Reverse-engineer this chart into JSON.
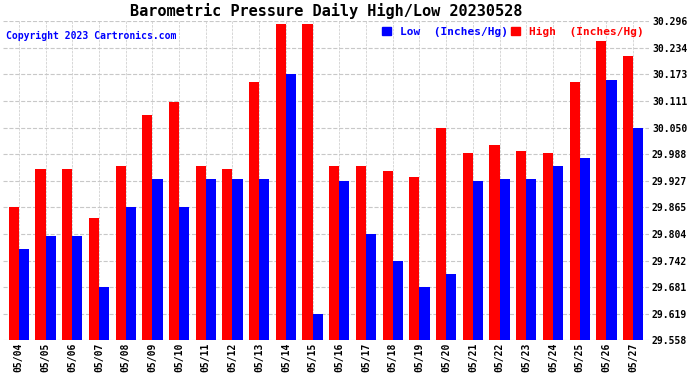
{
  "title": "Barometric Pressure Daily High/Low 20230528",
  "copyright": "Copyright 2023 Cartronics.com",
  "ylabel_low": "Low  (Inches/Hg)",
  "ylabel_high": "High  (Inches/Hg)",
  "dates": [
    "05/04",
    "05/05",
    "05/06",
    "05/07",
    "05/08",
    "05/09",
    "05/10",
    "05/11",
    "05/12",
    "05/13",
    "05/14",
    "05/15",
    "05/16",
    "05/17",
    "05/18",
    "05/19",
    "05/20",
    "05/21",
    "05/22",
    "05/23",
    "05/24",
    "05/25",
    "05/26",
    "05/27"
  ],
  "high_values": [
    29.865,
    29.955,
    29.955,
    29.84,
    29.96,
    30.08,
    30.11,
    29.96,
    29.955,
    30.155,
    30.29,
    30.29,
    29.96,
    29.96,
    29.95,
    29.935,
    30.05,
    29.99,
    30.01,
    29.995,
    29.99,
    30.155,
    30.25,
    30.215
  ],
  "low_values": [
    29.77,
    29.8,
    29.8,
    29.68,
    29.865,
    29.93,
    29.865,
    29.93,
    29.93,
    29.93,
    30.173,
    29.619,
    29.927,
    29.804,
    29.742,
    29.681,
    29.712,
    29.927,
    29.93,
    29.93,
    29.96,
    29.98,
    30.16,
    30.05
  ],
  "ylim_min": 29.558,
  "ylim_max": 30.296,
  "yticks": [
    29.558,
    29.619,
    29.681,
    29.742,
    29.804,
    29.865,
    29.927,
    29.988,
    30.05,
    30.111,
    30.173,
    30.234,
    30.296
  ],
  "bar_color_high": "#ff0000",
  "bar_color_low": "#0000ff",
  "bg_color": "#ffffff",
  "grid_color": "#c8c8c8",
  "title_fontsize": 11,
  "copyright_fontsize": 7,
  "legend_fontsize": 8,
  "tick_fontsize": 7,
  "bar_width": 0.38
}
